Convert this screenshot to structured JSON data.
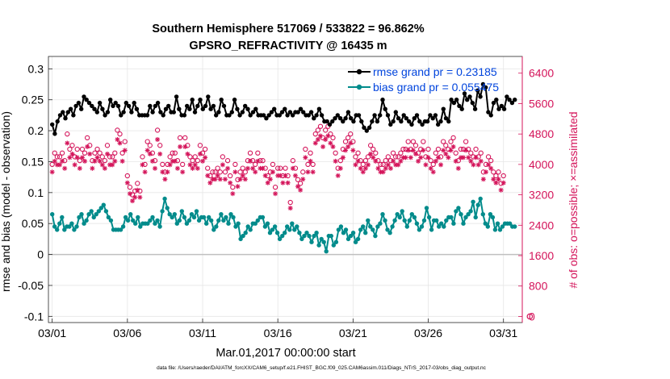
{
  "figure": {
    "title_line1": "Southern Hemisphere 517069 / 533822 = 96.862%",
    "title_line2": "GPSRO_REFRACTIVITY @ 16435 m",
    "footer": "data file: /Users/raeder/DAI/ATM_forcXX/CAM6_setup/f.e21.FHIST_BGC.f09_025.CAM6assim.011/Diags_NTrS_2017-03/obs_diag_output.nc"
  },
  "chart_data": {
    "type": "line",
    "xlabel": "Mar.01,2017 00:00:00 start",
    "ylabel_left": "rmse and bias (model - observation)",
    "ylabel_right": "# of obs: o=possible; ×=assimilated",
    "x_ticks": [
      "03/01",
      "03/06",
      "03/11",
      "03/16",
      "03/21",
      "03/26",
      "03/31"
    ],
    "x_tick_days": [
      0,
      5,
      10,
      15,
      20,
      25,
      30
    ],
    "xlim_days": [
      -0.25,
      31.25
    ],
    "ylim_left": [
      -0.11,
      0.32
    ],
    "yticks_left": [
      "0.3",
      "0.25",
      "0.2",
      "0.15",
      "0.1",
      "0.05",
      "0",
      "-0.05",
      "-0.1"
    ],
    "ylim_right": [
      -160,
      6840
    ],
    "yticks_right": [
      "6400",
      "5600",
      "4800",
      "4000",
      "3200",
      "2400",
      "1600",
      "800",
      "0"
    ],
    "grid": true,
    "legend_position": "top-right",
    "colors": {
      "rmse": "#000000",
      "bias": "#008b8b",
      "obs": "#d4145a",
      "zero_line": "#c0c0c0",
      "legend_text": "#0044dd"
    },
    "series": [
      {
        "key": "rmse",
        "name": "rmse grand pr = 0.23185",
        "values": [
          0.21,
          0.195,
          0.215,
          0.225,
          0.23,
          0.22,
          0.23,
          0.235,
          0.225,
          0.24,
          0.245,
          0.235,
          0.255,
          0.25,
          0.245,
          0.24,
          0.235,
          0.23,
          0.245,
          0.235,
          0.225,
          0.23,
          0.25,
          0.24,
          0.245,
          0.24,
          0.225,
          0.23,
          0.245,
          0.24,
          0.23,
          0.245,
          0.235,
          0.225,
          0.225,
          0.225,
          0.225,
          0.24,
          0.23,
          0.24,
          0.245,
          0.23,
          0.225,
          0.235,
          0.24,
          0.23,
          0.23,
          0.255,
          0.235,
          0.225,
          0.225,
          0.24,
          0.235,
          0.25,
          0.23,
          0.24,
          0.25,
          0.235,
          0.24,
          0.255,
          0.235,
          0.24,
          0.225,
          0.23,
          0.25,
          0.24,
          0.225,
          0.225,
          0.23,
          0.25,
          0.235,
          0.225,
          0.23,
          0.24,
          0.235,
          0.225,
          0.23,
          0.235,
          0.225,
          0.225,
          0.225,
          0.22,
          0.225,
          0.23,
          0.235,
          0.225,
          0.225,
          0.23,
          0.235,
          0.225,
          0.23,
          0.225,
          0.23,
          0.23,
          0.235,
          0.23,
          0.225,
          0.225,
          0.23,
          0.22,
          0.225,
          0.235,
          0.225,
          0.215,
          0.215,
          0.21,
          0.215,
          0.22,
          0.225,
          0.22,
          0.215,
          0.22,
          0.23,
          0.22,
          0.215,
          0.225,
          0.225,
          0.215,
          0.205,
          0.2,
          0.205,
          0.215,
          0.225,
          0.215,
          0.225,
          0.25,
          0.235,
          0.225,
          0.21,
          0.215,
          0.23,
          0.22,
          0.215,
          0.225,
          0.22,
          0.215,
          0.21,
          0.22,
          0.225,
          0.215,
          0.21,
          0.215,
          0.215,
          0.225,
          0.22,
          0.225,
          0.21,
          0.215,
          0.235,
          0.22,
          0.215,
          0.25,
          0.245,
          0.25,
          0.24,
          0.235,
          0.26,
          0.25,
          0.255,
          0.245,
          0.235,
          0.265,
          0.255,
          0.275,
          0.27,
          0.23,
          0.225,
          0.245,
          0.25,
          0.235,
          0.24,
          0.235,
          0.255,
          0.25,
          0.245,
          0.25
        ]
      },
      {
        "key": "bias",
        "name": "bias grand pr = 0.055475",
        "values": [
          0.065,
          0.045,
          0.04,
          0.05,
          0.06,
          0.04,
          0.045,
          0.045,
          0.05,
          0.04,
          0.045,
          0.06,
          0.065,
          0.05,
          0.055,
          0.065,
          0.07,
          0.06,
          0.065,
          0.07,
          0.075,
          0.08,
          0.07,
          0.06,
          0.055,
          0.04,
          0.04,
          0.04,
          0.04,
          0.045,
          0.06,
          0.055,
          0.065,
          0.055,
          0.05,
          0.06,
          0.045,
          0.05,
          0.05,
          0.05,
          0.055,
          0.06,
          0.05,
          0.055,
          0.045,
          0.07,
          0.09,
          0.075,
          0.065,
          0.06,
          0.065,
          0.05,
          0.055,
          0.07,
          0.06,
          0.05,
          0.055,
          0.065,
          0.06,
          0.07,
          0.055,
          0.06,
          0.06,
          0.05,
          0.06,
          0.055,
          0.04,
          0.045,
          0.055,
          0.065,
          0.055,
          0.06,
          0.05,
          0.065,
          0.06,
          0.045,
          0.05,
          0.025,
          0.03,
          0.035,
          0.045,
          0.04,
          0.05,
          0.05,
          0.055,
          0.06,
          0.06,
          0.045,
          0.05,
          0.035,
          0.04,
          0.045,
          0.035,
          0.025,
          0.03,
          0.035,
          0.045,
          0.04,
          0.05,
          0.04,
          0.045,
          0.035,
          0.025,
          0.03,
          0.035,
          0.03,
          0.02,
          0.03,
          0.035,
          0.015,
          0.025,
          0.02,
          0.005,
          0.03,
          0.03,
          0.015,
          0.02,
          0.04,
          0.045,
          0.035,
          0.04,
          0.025,
          0.03,
          0.035,
          0.02,
          0.025,
          0.04,
          0.045,
          0.035,
          0.055,
          0.045,
          0.04,
          0.03,
          0.045,
          0.05,
          0.065,
          0.055,
          0.04,
          0.035,
          0.045,
          0.055,
          0.065,
          0.06,
          0.07,
          0.055,
          0.045,
          0.055,
          0.065,
          0.06,
          0.05,
          0.04,
          0.045,
          0.055,
          0.075,
          0.06,
          0.04,
          0.055,
          0.055,
          0.045,
          0.05,
          0.045,
          0.055,
          0.06,
          0.06,
          0.05,
          0.07,
          0.075,
          0.065,
          0.05,
          0.06,
          0.065,
          0.07,
          0.085,
          0.06,
          0.08,
          0.09,
          0.065,
          0.05,
          0.045,
          0.065,
          0.06,
          0.04,
          0.05,
          0.04,
          0.045,
          0.05,
          0.05,
          0.05,
          0.045,
          0.045
        ]
      }
    ],
    "obs_series": {
      "possible": [
        4000,
        4300,
        4200,
        4200,
        4300,
        4100,
        4800,
        4400,
        4500,
        4200,
        4400,
        4100,
        4400,
        4300,
        4700,
        4500,
        4100,
        4300,
        4400,
        4300,
        4200,
        4100,
        4500,
        4200,
        4200,
        4300,
        4900,
        4800,
        4300,
        4600,
        3700,
        3400,
        3200,
        3300,
        3500,
        3300,
        4200,
        4000,
        4600,
        4500,
        4300,
        4100,
        4900,
        4500,
        4000,
        3800,
        4000,
        4200,
        4300,
        4300,
        4100,
        4700,
        4000,
        4700,
        4500,
        4200,
        4100,
        4200,
        4100,
        4500,
        4300,
        4400,
        3900,
        3700,
        3800,
        3800,
        3900,
        3800,
        4200,
        3800,
        4100,
        3700,
        3400,
        4000,
        3600,
        3800,
        3900,
        3800,
        4100,
        4300,
        4100,
        4000,
        4300,
        4100,
        4100,
        3900,
        3700,
        3800,
        4000,
        3400,
        3900,
        3900,
        3700,
        3900,
        3700,
        3000,
        4100,
        3900,
        3600,
        3500,
        3800,
        4400,
        4000,
        4300,
        4000,
        4800,
        4900,
        5000,
        4700,
        4900,
        5000,
        4800,
        4700,
        4300,
        3900,
        4100,
        4400,
        4600,
        4700,
        4800,
        4600,
        4200,
        4300,
        4100,
        4000,
        4100,
        4200,
        4500,
        4400,
        4300,
        4100,
        4000,
        4000,
        4100,
        4200,
        4100,
        4300,
        4200,
        4200,
        4300,
        4400,
        4400,
        4600,
        4400,
        4600,
        4500,
        4300,
        4400,
        4600,
        4200,
        4400,
        4100,
        4000,
        4300,
        4400,
        4200,
        4600,
        4500,
        4400,
        4600,
        4700,
        4300,
        4100,
        4400,
        4400,
        4600,
        4400,
        4300,
        4200,
        4400,
        4200,
        4300,
        3800,
        4000,
        4200,
        4100,
        3800,
        3700,
        3800,
        3500,
        3700
      ]
    },
    "right_axis_extra": {
      "x_day": 31,
      "value": 0,
      "marker": "o",
      "color": "#d4145a"
    }
  }
}
